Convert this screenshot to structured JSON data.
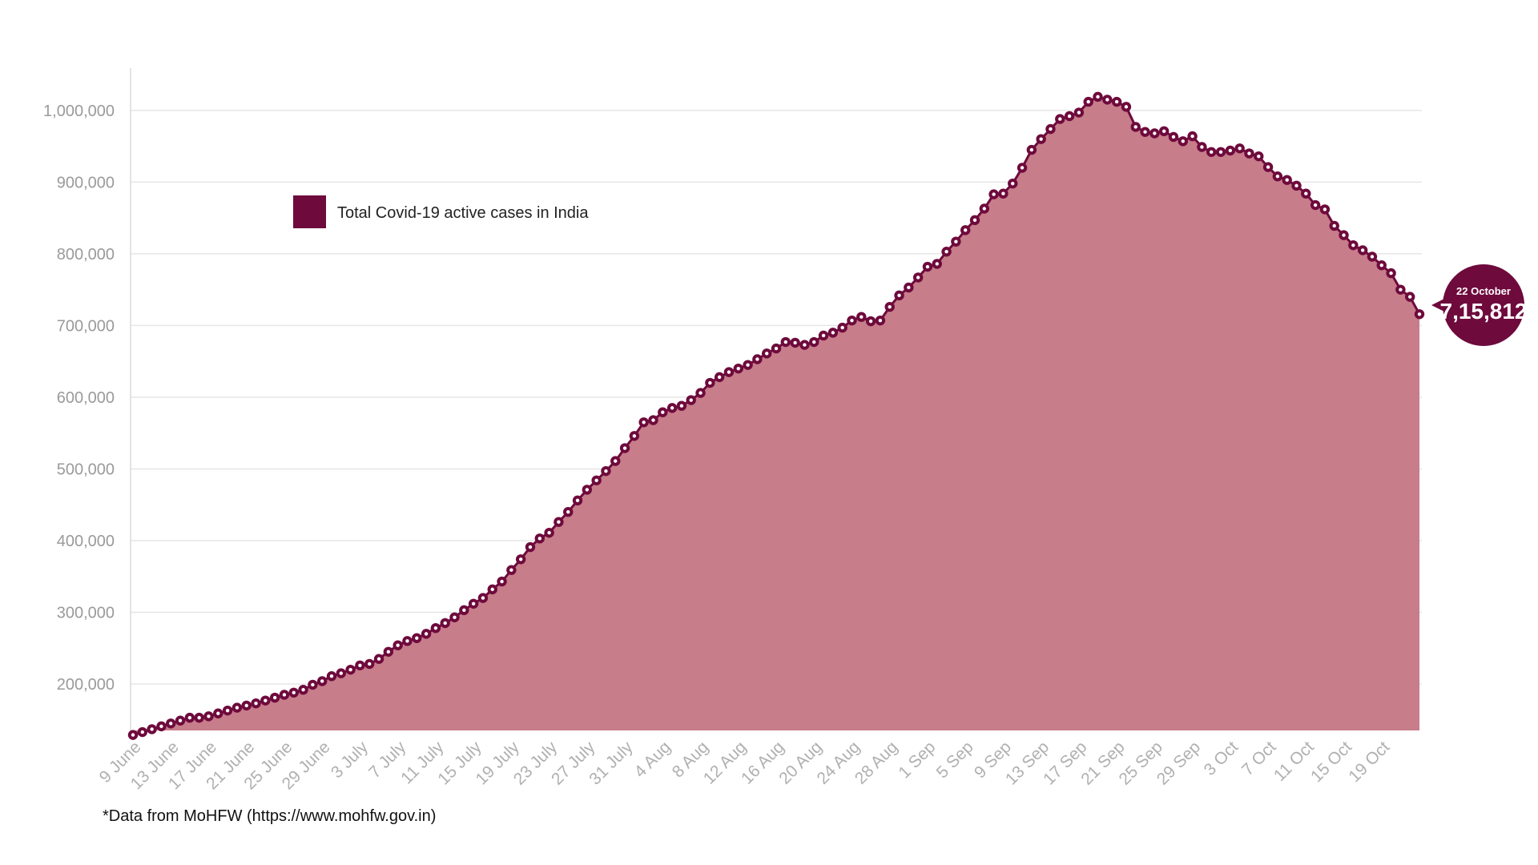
{
  "colors": {
    "area": "#c77d8a",
    "marker": "#6e0a3c",
    "marker_dot": "#ffffff",
    "grid": "#e6e6e6",
    "axis": "#dcdcdc"
  },
  "source_note": "*Data from MoHFW (https://www.mohfw.gov.in)",
  "callout": {
    "date": "22 October",
    "value": "7,15,812"
  },
  "chart_data": {
    "type": "area",
    "title": "",
    "xlabel": "",
    "ylabel": "",
    "ylim": [
      120000,
      1050000
    ],
    "y_ticks": [
      200000,
      300000,
      400000,
      500000,
      600000,
      700000,
      800000,
      900000,
      1000000
    ],
    "y_tick_labels": [
      "200,000",
      "300,000",
      "400,000",
      "500,000",
      "600,000",
      "700,000",
      "800,000",
      "900,000",
      "1,000,000"
    ],
    "x_tick_labels": [
      "9 June",
      "13 June",
      "17 June",
      "21 June",
      "25 June",
      "29 June",
      "3 July",
      "7 July",
      "11 July",
      "15 July",
      "19 July",
      "23 July",
      "27 July",
      "31 July",
      "4 Aug",
      "8 Aug",
      "12 Aug",
      "16 Aug",
      "20 Aug",
      "24 Aug",
      "28 Aug",
      "1 Sep",
      "5 Sep",
      "9 Sep",
      "13 Sep",
      "17 Sep",
      "21 Sep",
      "25 Sep",
      "29 Sep",
      "3 Oct",
      "7 Oct",
      "11 Oct",
      "15 Oct",
      "19 Oct"
    ],
    "x_start": "9 June",
    "x_end": "22 October",
    "legend": {
      "position": "top-left"
    },
    "grid": true,
    "series": [
      {
        "name": "Total Covid-19 active cases in India",
        "values": [
          129000,
          133000,
          137000,
          141000,
          145000,
          149000,
          153000,
          153000,
          155000,
          159000,
          163000,
          167000,
          170000,
          173000,
          177000,
          181000,
          185000,
          188000,
          192000,
          199000,
          204000,
          211000,
          215000,
          220000,
          226000,
          228000,
          235000,
          245000,
          254000,
          260000,
          264000,
          270000,
          278000,
          285000,
          293000,
          303000,
          312000,
          320000,
          332000,
          343000,
          359000,
          374000,
          391000,
          403000,
          411000,
          426000,
          440000,
          456000,
          471000,
          484000,
          497000,
          511000,
          529000,
          546000,
          565000,
          568000,
          579000,
          585000,
          588000,
          596000,
          606000,
          620000,
          628000,
          635000,
          640000,
          645000,
          653000,
          661000,
          668000,
          677000,
          676000,
          673000,
          677000,
          686000,
          690000,
          697000,
          707000,
          712000,
          706000,
          707000,
          726000,
          742000,
          753000,
          767000,
          782000,
          786000,
          803000,
          817000,
          833000,
          847000,
          863000,
          883000,
          884000,
          898000,
          920000,
          945000,
          960000,
          974000,
          988000,
          992000,
          997000,
          1012000,
          1019000,
          1015000,
          1012000,
          1005000,
          977000,
          970000,
          968000,
          971000,
          963000,
          957000,
          964000,
          949000,
          942000,
          942000,
          944000,
          947000,
          940000,
          936000,
          921000,
          908000,
          903000,
          895000,
          884000,
          868000,
          862000,
          839000,
          826000,
          812000,
          805000,
          796000,
          784000,
          773000,
          750000,
          740000,
          715812
        ]
      }
    ]
  }
}
